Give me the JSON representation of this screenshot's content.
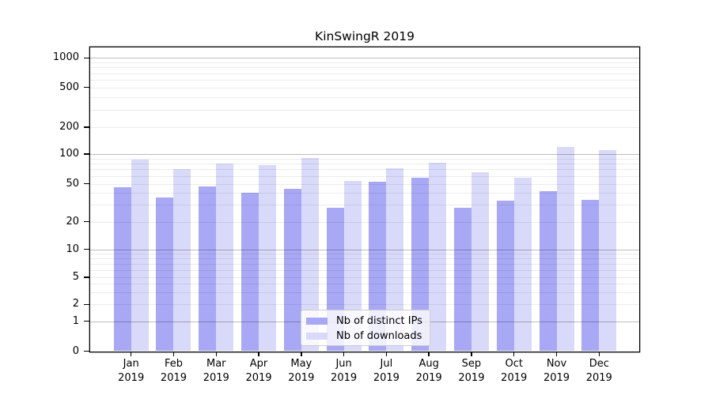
{
  "chart_data": {
    "type": "bar",
    "title": "KinSwingR 2019",
    "categories": [
      "Jan",
      "Feb",
      "Mar",
      "Apr",
      "May",
      "Jun",
      "Jul",
      "Aug",
      "Sep",
      "Oct",
      "Nov",
      "Dec"
    ],
    "x_tick_second_line": "2019",
    "series": [
      {
        "name": "Nb of distinct IPs",
        "color": "#a8a8f5",
        "values": [
          46,
          36,
          47,
          40,
          44,
          28,
          53,
          58,
          28,
          33,
          42,
          34
        ]
      },
      {
        "name": "Nb of downloads",
        "color": "#d9d9fa",
        "values": [
          88,
          70,
          80,
          77,
          91,
          54,
          72,
          82,
          65,
          58,
          120,
          110
        ]
      }
    ],
    "y_ticks": [
      0,
      1,
      2,
      5,
      10,
      20,
      50,
      100,
      200,
      500,
      1000
    ],
    "y_tick_labels": [
      "0",
      "1",
      "2",
      "5",
      "10",
      "20",
      "50",
      "100",
      "200",
      "500",
      "1000"
    ],
    "ylim": [
      0,
      1300
    ],
    "y_scale": "log-like (compressed linear region near 0)",
    "grid": true,
    "legend_position": "lower-center",
    "xlabel": "",
    "ylabel": ""
  },
  "colors": {
    "bar_dark": "#a8a8f5",
    "bar_light": "#d9d9fa",
    "major_grid": "rgba(0,0,0,0.26)",
    "minor_grid": "rgba(0,0,0,0.075)",
    "spine": "#000000",
    "legend_border": "#cccccc",
    "background": "#ffffff"
  }
}
